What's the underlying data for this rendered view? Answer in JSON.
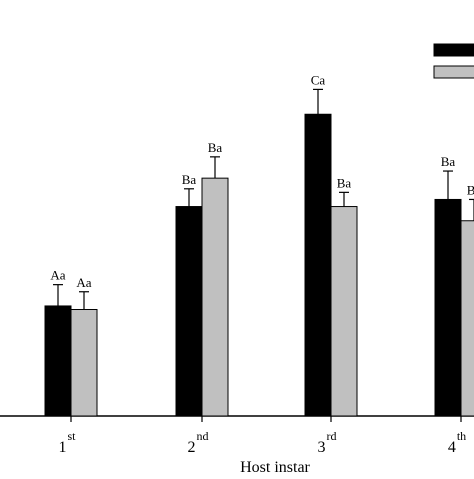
{
  "chart_data": {
    "type": "bar",
    "title": "",
    "xlabel": "Host instar",
    "ylabel": "",
    "categories": [
      {
        "base": "1",
        "sup": "st"
      },
      {
        "base": "2",
        "sup": "nd"
      },
      {
        "base": "3",
        "sup": "rd"
      },
      {
        "base": "4",
        "sup": "th"
      }
    ],
    "ylim": [
      0,
      100
    ],
    "grid": false,
    "legend": {
      "placement": "top-right",
      "entries_visible": 2
    },
    "series": [
      {
        "color": "#000000",
        "values": [
          31,
          59,
          85,
          61
        ],
        "errors": [
          6,
          5,
          7,
          8
        ],
        "labels": [
          "Aa",
          "Ba",
          "Ca",
          "Ba"
        ]
      },
      {
        "color": "#c0c0c0",
        "values": [
          30,
          67,
          59,
          55
        ],
        "errors": [
          5,
          6,
          4,
          6
        ],
        "labels": [
          "Aa",
          "Ba",
          "Ba",
          "Ba"
        ]
      }
    ]
  }
}
